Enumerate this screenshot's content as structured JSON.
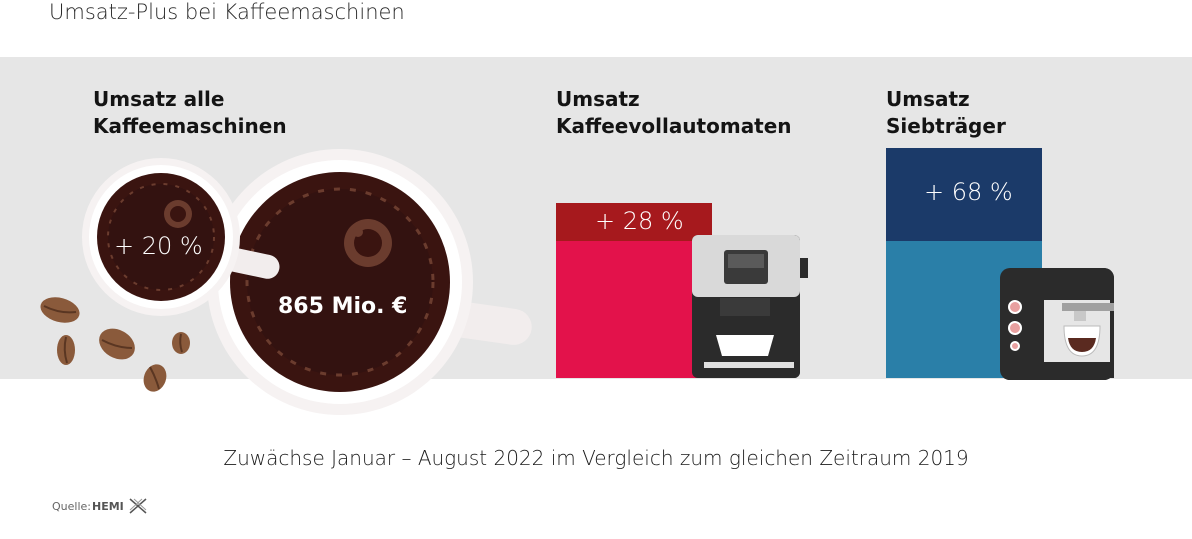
{
  "title": "Umsatz-Plus bei Kaffeemaschinen",
  "caption": "Zuwächse Januar – August 2022 im Vergleich zum gleichen Zeitraum 2019",
  "source_label": "Quelle:",
  "source_brand": "HEMI",
  "colors": {
    "band": "#e6e6e6",
    "coffee": "#3a1410",
    "cup_rim": "#f2eded",
    "vollautomat_base": "#e3124b",
    "vollautomat_plus": "#a6191d",
    "siebtraeger_base": "#2a7fa8",
    "siebtraeger_plus": "#1b3a69"
  },
  "chart_data": {
    "type": "bar",
    "categories": [
      "Umsatz alle Kaffeemaschinen",
      "Umsatz Kaffeevollautomaten",
      "Umsatz Siebträger"
    ],
    "values": [
      20,
      28,
      68
    ],
    "value_labels": [
      "+ 20 %",
      "+ 28 %",
      "+ 68 %"
    ],
    "unit": "%",
    "total_label": "865 Mio. €",
    "period": "Januar – August 2022 vs. 2019"
  },
  "labels": {
    "all_line1": "Umsatz alle",
    "all_line2": "Kaffeemaschinen",
    "va_line1": "Umsatz",
    "va_line2": "Kaffeevollautomaten",
    "st_line1": "Umsatz",
    "st_line2": "Siebträger"
  }
}
